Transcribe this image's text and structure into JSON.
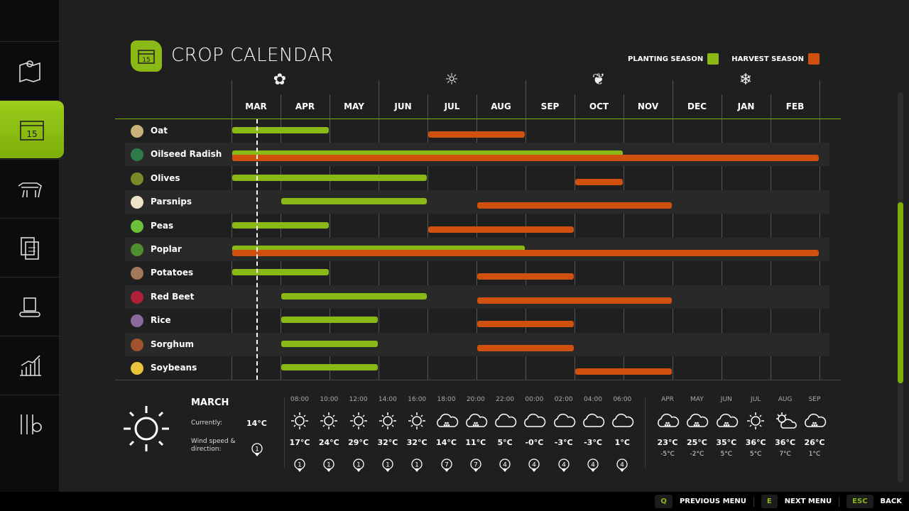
{
  "sidebar": {
    "items": [
      {
        "name": "map",
        "icon": "map-icon"
      },
      {
        "name": "calendar",
        "icon": "calendar-icon",
        "active": true
      },
      {
        "name": "animals",
        "icon": "cow-icon"
      },
      {
        "name": "contracts",
        "icon": "documents-icon"
      },
      {
        "name": "production",
        "icon": "factory-icon"
      },
      {
        "name": "statistics",
        "icon": "chart-icon"
      },
      {
        "name": "settings",
        "icon": "sliders-gear-icon"
      }
    ]
  },
  "header": {
    "title": "CROP CALENDAR",
    "icon_text": "15"
  },
  "legend": {
    "planting": "PLANTING SEASON",
    "harvest": "HARVEST SEASON",
    "planting_color": "#8ab816",
    "harvest_color": "#d0500f"
  },
  "calendar": {
    "months": [
      "MAR",
      "APR",
      "MAY",
      "JUN",
      "JUL",
      "AUG",
      "SEP",
      "OCT",
      "NOV",
      "DEC",
      "JAN",
      "FEB"
    ],
    "season_icons": [
      {
        "month": "APR",
        "icon": "flower-icon"
      },
      {
        "month": "JUL",
        "icon": "sun-icon"
      },
      {
        "month": "OCT",
        "icon": "leaves-icon"
      },
      {
        "month": "JAN",
        "icon": "snowflake-icon"
      }
    ],
    "current_month": "MAR",
    "crops": [
      {
        "name": "Oat",
        "color": "#c9b27a",
        "planting": [
          "MAR",
          "APR"
        ],
        "harvest": [
          "JUL",
          "AUG"
        ]
      },
      {
        "name": "Oilseed Radish",
        "color": "#2f7a4a",
        "planting": [
          "MAR",
          "OCT"
        ],
        "harvest": [
          "MAR",
          "FEB"
        ]
      },
      {
        "name": "Olives",
        "color": "#7a8a2a",
        "planting": [
          "MAR",
          "JUN"
        ],
        "harvest": [
          "OCT",
          "OCT"
        ]
      },
      {
        "name": "Parsnips",
        "color": "#eee3c8",
        "planting": [
          "APR",
          "JUN"
        ],
        "harvest": [
          "AUG",
          "NOV"
        ]
      },
      {
        "name": "Peas",
        "color": "#6bbf3a",
        "planting": [
          "MAR",
          "APR"
        ],
        "harvest": [
          "JUL",
          "SEP"
        ]
      },
      {
        "name": "Poplar",
        "color": "#4e8e2e",
        "planting": [
          "MAR",
          "AUG"
        ],
        "harvest": [
          "MAR",
          "FEB"
        ]
      },
      {
        "name": "Potatoes",
        "color": "#a3785a",
        "planting": [
          "MAR",
          "APR"
        ],
        "harvest": [
          "AUG",
          "SEP"
        ]
      },
      {
        "name": "Red Beet",
        "color": "#b0203a",
        "planting": [
          "APR",
          "JUN"
        ],
        "harvest": [
          "AUG",
          "NOV"
        ]
      },
      {
        "name": "Rice",
        "color": "#8a6a9a",
        "planting": [
          "APR",
          "MAY"
        ],
        "harvest": [
          "AUG",
          "SEP"
        ]
      },
      {
        "name": "Sorghum",
        "color": "#a0522d",
        "planting": [
          "APR",
          "MAY"
        ],
        "harvest": [
          "AUG",
          "SEP"
        ]
      },
      {
        "name": "Soybeans",
        "color": "#e8c43a",
        "planting": [
          "APR",
          "MAY"
        ],
        "harvest": [
          "OCT",
          "NOV"
        ]
      }
    ]
  },
  "weather": {
    "month": "MARCH",
    "currently_label": "Currently:",
    "current_temp": "14°C",
    "wind_label": "Wind speed & direction:",
    "wind_value": "1",
    "current_icon": "sun",
    "hourly": [
      {
        "time": "08:00",
        "icon": "sun",
        "temp": "17°C",
        "wind": "1"
      },
      {
        "time": "10:00",
        "icon": "sun",
        "temp": "24°C",
        "wind": "1"
      },
      {
        "time": "12:00",
        "icon": "sun",
        "temp": "29°C",
        "wind": "1"
      },
      {
        "time": "14:00",
        "icon": "sun",
        "temp": "32°C",
        "wind": "1"
      },
      {
        "time": "16:00",
        "icon": "sun",
        "temp": "32°C",
        "wind": "1"
      },
      {
        "time": "18:00",
        "icon": "hail",
        "temp": "14°C",
        "wind": "7"
      },
      {
        "time": "20:00",
        "icon": "hail",
        "temp": "11°C",
        "wind": "7"
      },
      {
        "time": "22:00",
        "icon": "cloud",
        "temp": "5°C",
        "wind": "4"
      },
      {
        "time": "00:00",
        "icon": "cloud",
        "temp": "-0°C",
        "wind": "4"
      },
      {
        "time": "02:00",
        "icon": "cloud",
        "temp": "-3°C",
        "wind": "4"
      },
      {
        "time": "04:00",
        "icon": "cloud",
        "temp": "-3°C",
        "wind": "4"
      },
      {
        "time": "06:00",
        "icon": "cloud",
        "temp": "1°C",
        "wind": "4"
      }
    ],
    "monthly": [
      {
        "month": "APR",
        "icon": "hail",
        "high": "23°C",
        "low": "-5°C"
      },
      {
        "month": "MAY",
        "icon": "hail",
        "high": "25°C",
        "low": "-2°C"
      },
      {
        "month": "JUN",
        "icon": "hail",
        "high": "35°C",
        "low": "5°C"
      },
      {
        "month": "JUL",
        "icon": "sun",
        "high": "36°C",
        "low": "5°C"
      },
      {
        "month": "AUG",
        "icon": "partly",
        "high": "36°C",
        "low": "7°C"
      },
      {
        "month": "SEP",
        "icon": "hail",
        "high": "26°C",
        "low": "1°C"
      }
    ]
  },
  "footer": [
    {
      "key": "Q",
      "label": "PREVIOUS MENU"
    },
    {
      "key": "E",
      "label": "NEXT MENU"
    },
    {
      "key": "ESC",
      "label": "BACK"
    }
  ]
}
